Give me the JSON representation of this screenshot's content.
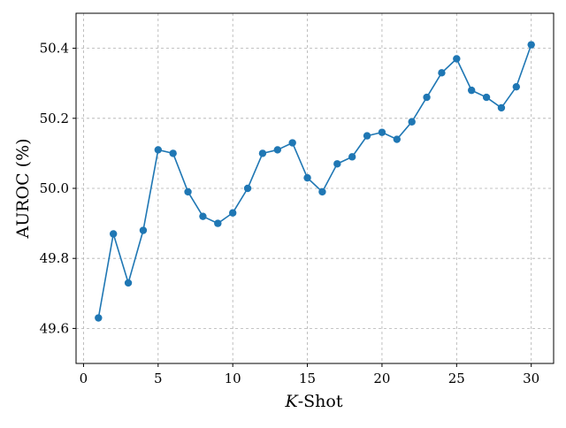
{
  "chart_data": {
    "type": "line",
    "title": "",
    "xlabel_var": "K",
    "xlabel_rest": "-Shot",
    "ylabel": "AUROC (%)",
    "xlim": [
      -0.5,
      31.5
    ],
    "ylim": [
      49.5,
      50.5
    ],
    "xticks": [
      0,
      5,
      10,
      15,
      20,
      25,
      30
    ],
    "xtick_labels": [
      "0",
      "5",
      "10",
      "15",
      "20",
      "25",
      "30"
    ],
    "yticks": [
      49.6,
      49.8,
      50.0,
      50.2,
      50.4
    ],
    "ytick_labels": [
      "49.6",
      "49.8",
      "50.0",
      "50.2",
      "50.4"
    ],
    "grid": true,
    "legend": "none",
    "series": [
      {
        "color": "#1f77b4",
        "marker": "circle",
        "x": [
          1,
          2,
          3,
          4,
          5,
          6,
          7,
          8,
          9,
          10,
          11,
          12,
          13,
          14,
          15,
          16,
          17,
          18,
          19,
          20,
          21,
          22,
          23,
          24,
          25,
          26,
          27,
          28,
          29,
          30
        ],
        "y": [
          49.63,
          49.87,
          49.73,
          49.88,
          50.11,
          50.1,
          49.99,
          49.92,
          49.9,
          49.93,
          50.0,
          50.1,
          50.11,
          50.13,
          50.03,
          49.99,
          50.07,
          50.09,
          50.15,
          50.16,
          50.14,
          50.19,
          50.26,
          50.33,
          50.37,
          50.28,
          50.26,
          50.23,
          50.29,
          50.41
        ]
      }
    ]
  }
}
